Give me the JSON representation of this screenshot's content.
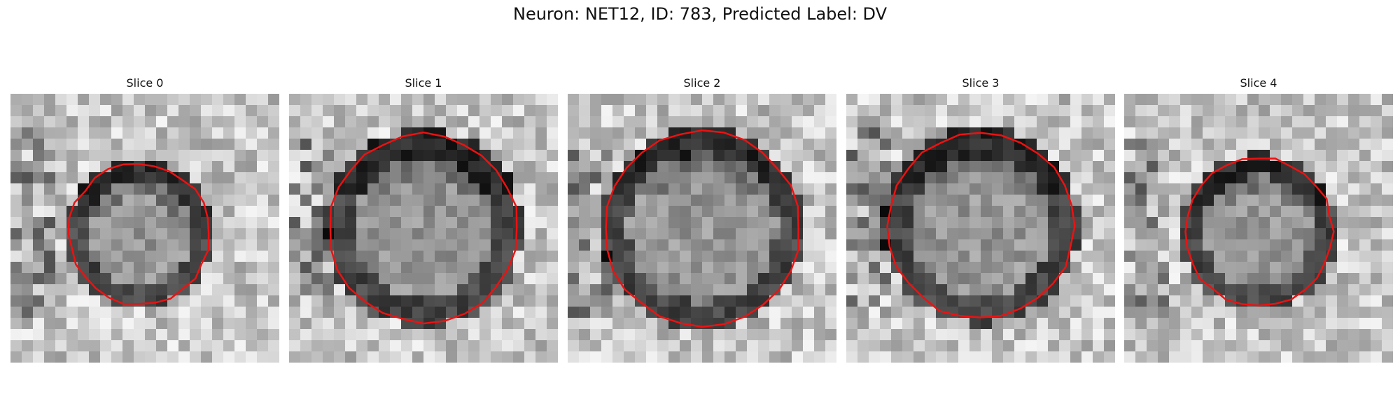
{
  "figure": {
    "title": "Neuron: NET12, ID: 783, Predicted Label: DV"
  },
  "contour_color": "#ee1111",
  "slices": [
    {
      "label": "Slice 0"
    },
    {
      "label": "Slice 1"
    },
    {
      "label": "Slice 2"
    },
    {
      "label": "Slice 3"
    },
    {
      "label": "Slice 4"
    }
  ]
}
